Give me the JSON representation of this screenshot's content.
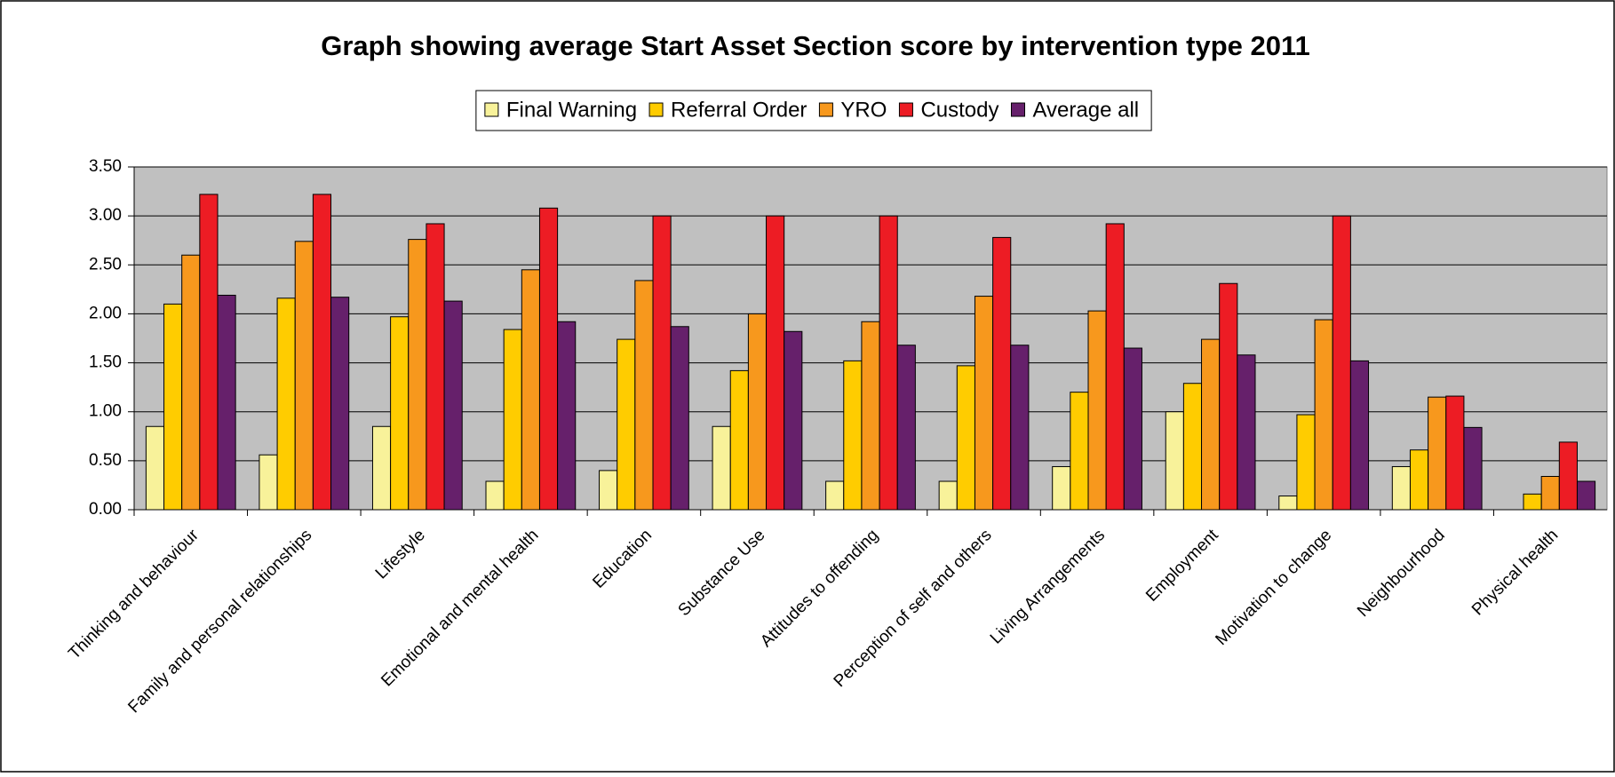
{
  "chart_data": {
    "type": "bar",
    "title": "Graph showing average Start Asset Section score by intervention type 2011",
    "categories": [
      "Thinking and behaviour",
      "Family and personal relationships",
      "Lifestyle",
      "Emotional and mental health",
      "Education",
      "Substance Use",
      "Attitudes to offending",
      "Perception of self and others",
      "Living Arrangements",
      "Employment",
      "Motivation to change",
      "Neighbourhood",
      "Physical health"
    ],
    "series": [
      {
        "name": "Final Warning",
        "color": "#f8f29a",
        "values": [
          0.85,
          0.56,
          0.85,
          0.29,
          0.4,
          0.85,
          0.29,
          0.29,
          0.44,
          1.0,
          0.14,
          0.44,
          0
        ]
      },
      {
        "name": "Referral Order",
        "color": "#ffcc00",
        "values": [
          2.1,
          2.16,
          1.97,
          1.84,
          1.74,
          1.42,
          1.52,
          1.47,
          1.2,
          1.29,
          0.97,
          0.61,
          0.16
        ]
      },
      {
        "name": "YRO",
        "color": "#f7981d",
        "values": [
          2.6,
          2.74,
          2.76,
          2.45,
          2.34,
          2.0,
          1.92,
          2.18,
          2.03,
          1.74,
          1.94,
          1.15,
          0.34
        ]
      },
      {
        "name": "Custody",
        "color": "#ed1c24",
        "values": [
          3.22,
          3.22,
          2.92,
          3.08,
          3.0,
          3.0,
          3.0,
          2.78,
          2.92,
          2.31,
          3.0,
          1.16,
          0.69
        ]
      },
      {
        "name": "Average all",
        "color": "#66206b",
        "values": [
          2.19,
          2.17,
          2.13,
          1.92,
          1.87,
          1.82,
          1.68,
          1.68,
          1.65,
          1.58,
          1.52,
          0.84,
          0.29
        ]
      }
    ],
    "ylim": [
      0,
      3.5
    ],
    "yticks": [
      {
        "value": 0,
        "label": "0.00"
      },
      {
        "value": 0.5,
        "label": "0.50"
      },
      {
        "value": 1,
        "label": "1.00"
      },
      {
        "value": 1.5,
        "label": "1.50"
      },
      {
        "value": 2,
        "label": "2.00"
      },
      {
        "value": 2.5,
        "label": "2.50"
      },
      {
        "value": 3,
        "label": "3.00"
      },
      {
        "value": 3.5,
        "label": "3.50"
      }
    ],
    "grid": true,
    "legend": "top"
  }
}
